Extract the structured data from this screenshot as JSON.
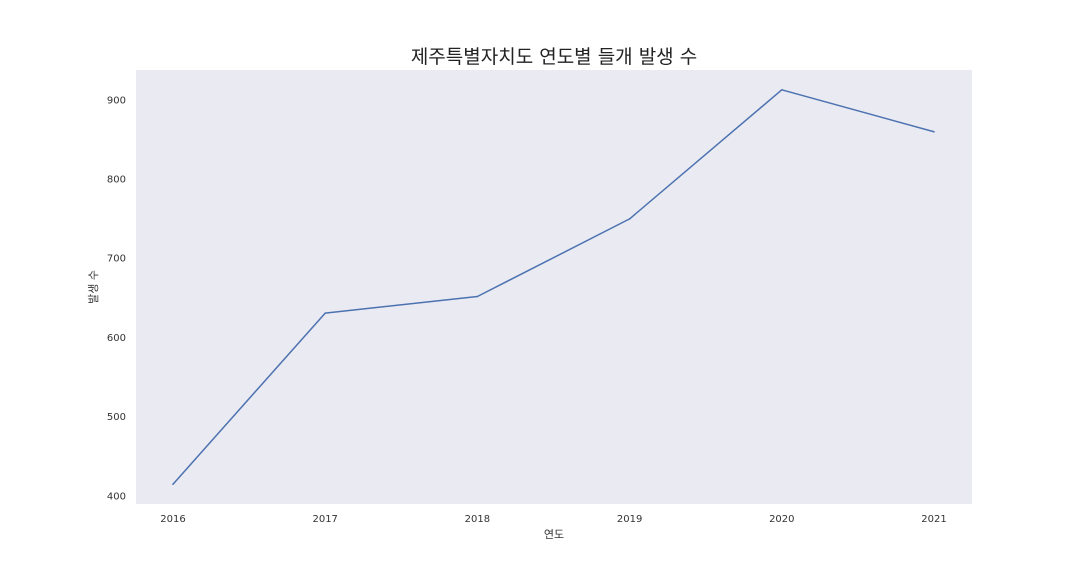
{
  "chart_data": {
    "type": "line",
    "title": "제주특별자치도 연도별 들개 발생 수",
    "xlabel": "연도",
    "ylabel": "발생 수",
    "x": [
      "2016",
      "2017",
      "2018",
      "2019",
      "2020",
      "2021"
    ],
    "series": [
      {
        "values": [
          414,
          630,
          651,
          749,
          912,
          859
        ]
      }
    ],
    "yticks": [
      400,
      500,
      600,
      700,
      800,
      900
    ],
    "ylim": [
      389,
      937
    ],
    "grid": false,
    "legend": "none",
    "colors": {
      "line": "#4c72b0",
      "plot_bg": "#eaeaf2"
    }
  }
}
